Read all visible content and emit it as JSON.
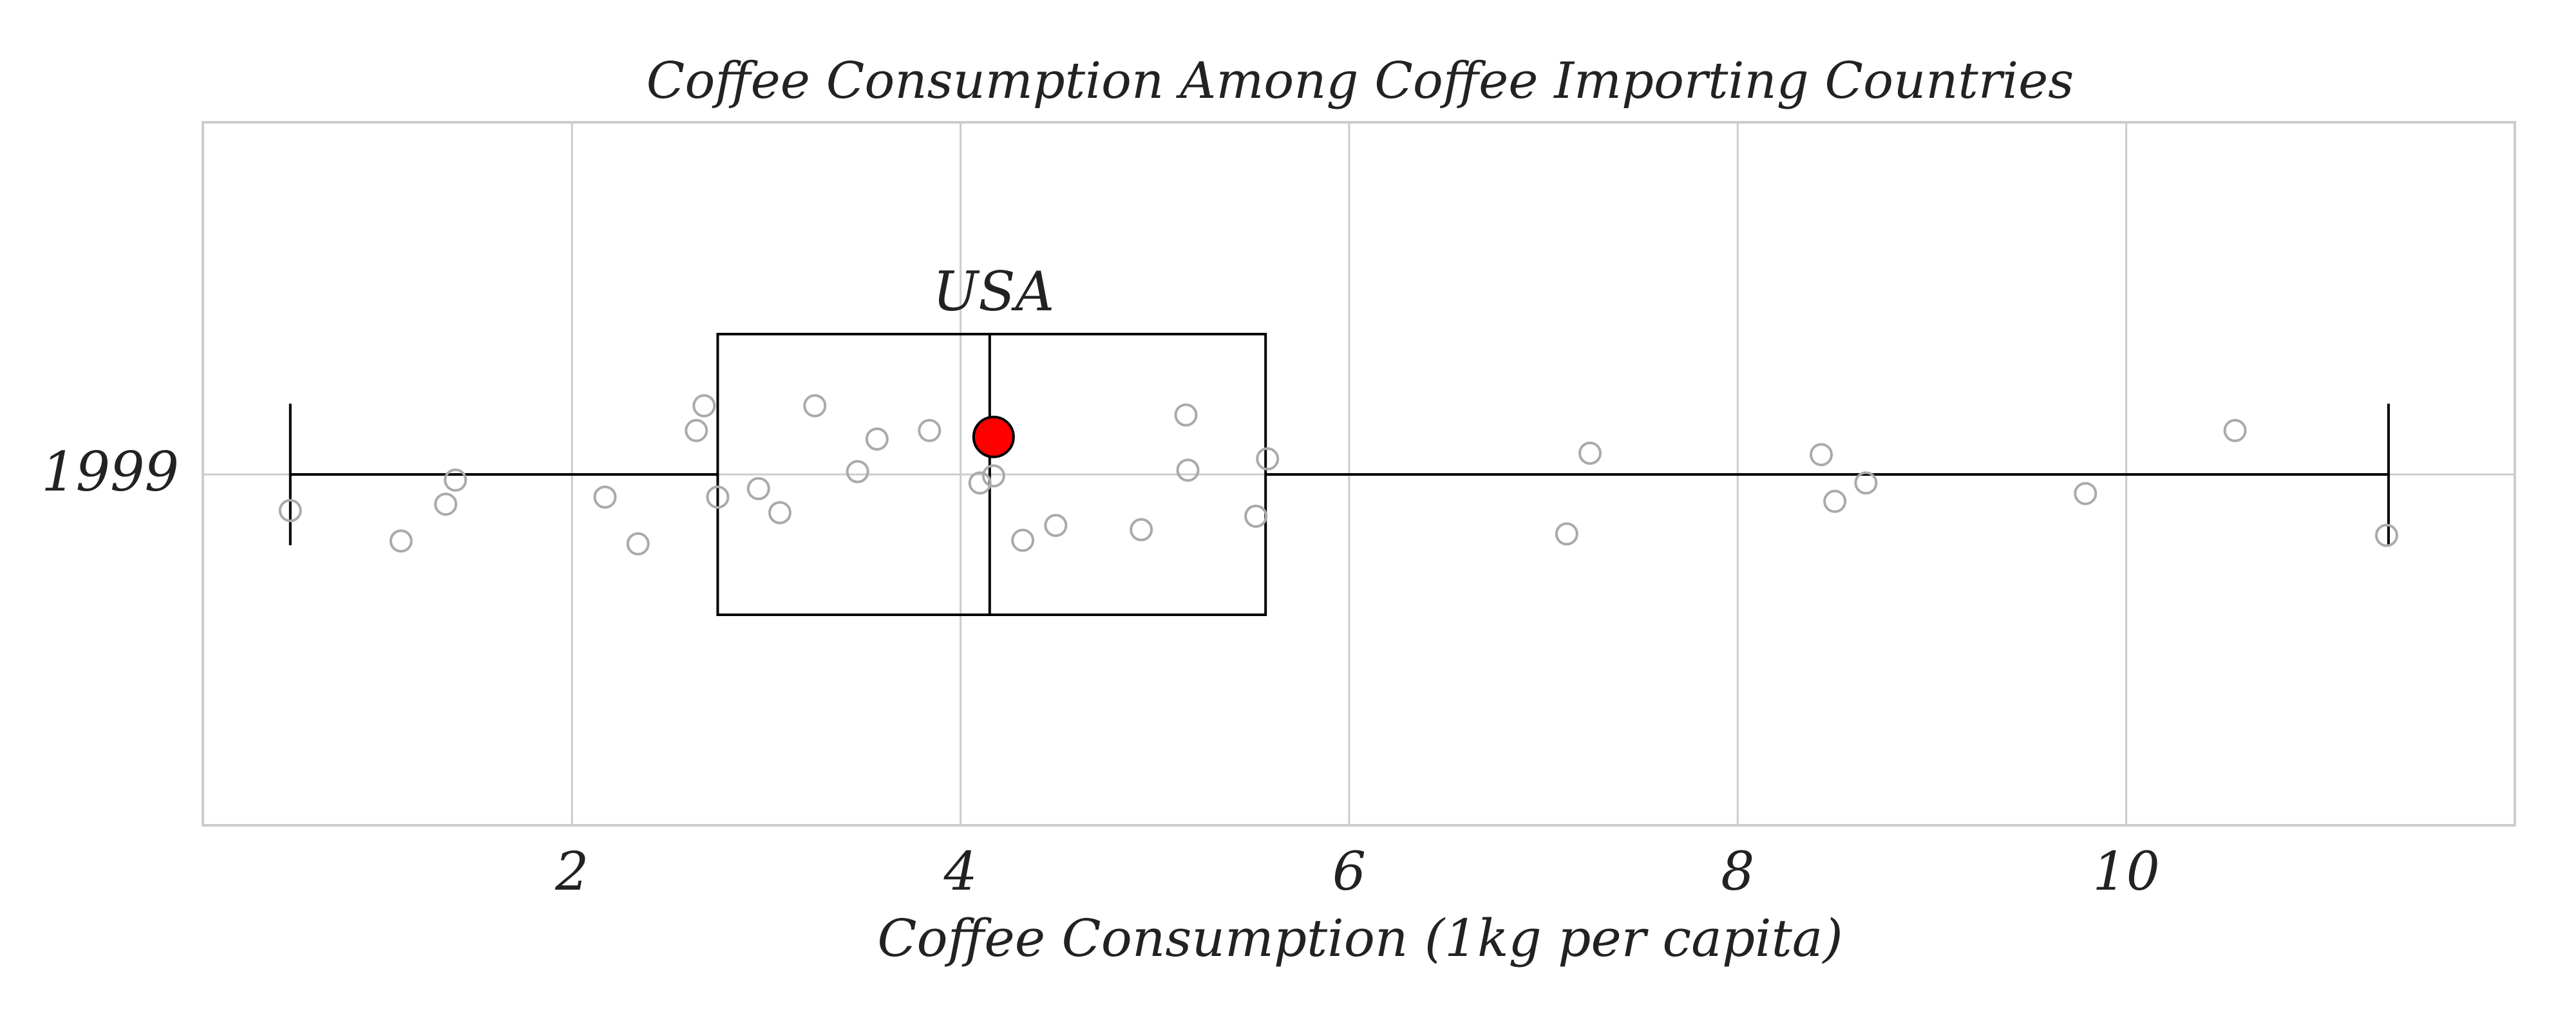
{
  "chart_data": {
    "type": "box",
    "title": "Coffee Consumption Among Coffee Importing Countries",
    "xlabel": "Coffee Consumption (1kg per capita)",
    "ylabel": "",
    "category": "1999",
    "xlim": [
      0.1,
      12.0
    ],
    "xticks": [
      2,
      4,
      6,
      8,
      10
    ],
    "grid": true,
    "box": {
      "min": 0.55,
      "q1": 2.75,
      "median": 4.15,
      "q3": 5.57,
      "max": 11.35
    },
    "points": [
      {
        "x": 0.55,
        "jitter": -0.255
      },
      {
        "x": 1.12,
        "jitter": -0.47
      },
      {
        "x": 1.35,
        "jitter": -0.21
      },
      {
        "x": 1.4,
        "jitter": -0.04
      },
      {
        "x": 2.17,
        "jitter": -0.16
      },
      {
        "x": 2.34,
        "jitter": -0.49
      },
      {
        "x": 2.64,
        "jitter": 0.31
      },
      {
        "x": 2.68,
        "jitter": 0.485
      },
      {
        "x": 2.75,
        "jitter": -0.16
      },
      {
        "x": 2.96,
        "jitter": -0.1
      },
      {
        "x": 3.07,
        "jitter": -0.27
      },
      {
        "x": 3.25,
        "jitter": 0.485
      },
      {
        "x": 3.47,
        "jitter": 0.02
      },
      {
        "x": 3.57,
        "jitter": 0.25
      },
      {
        "x": 3.84,
        "jitter": 0.31
      },
      {
        "x": 4.1,
        "jitter": -0.06
      },
      {
        "x": 4.17,
        "jitter": -0.01
      },
      {
        "x": 4.32,
        "jitter": -0.465
      },
      {
        "x": 4.49,
        "jitter": -0.36
      },
      {
        "x": 4.93,
        "jitter": -0.39
      },
      {
        "x": 5.16,
        "jitter": 0.42
      },
      {
        "x": 5.17,
        "jitter": 0.03
      },
      {
        "x": 5.52,
        "jitter": -0.295
      },
      {
        "x": 5.58,
        "jitter": 0.11
      },
      {
        "x": 7.12,
        "jitter": -0.42
      },
      {
        "x": 7.24,
        "jitter": 0.15
      },
      {
        "x": 8.43,
        "jitter": 0.14
      },
      {
        "x": 8.5,
        "jitter": -0.19
      },
      {
        "x": 8.66,
        "jitter": -0.06
      },
      {
        "x": 9.79,
        "jitter": -0.135
      },
      {
        "x": 10.56,
        "jitter": 0.31
      },
      {
        "x": 11.34,
        "jitter": -0.43
      }
    ],
    "highlight": {
      "label": "USA",
      "x": 4.17,
      "jitter": 0.265,
      "color": "#ff0000"
    },
    "colors": {
      "points": "#aaaaaa",
      "grid": "#cccccc",
      "box": "#000000"
    }
  }
}
